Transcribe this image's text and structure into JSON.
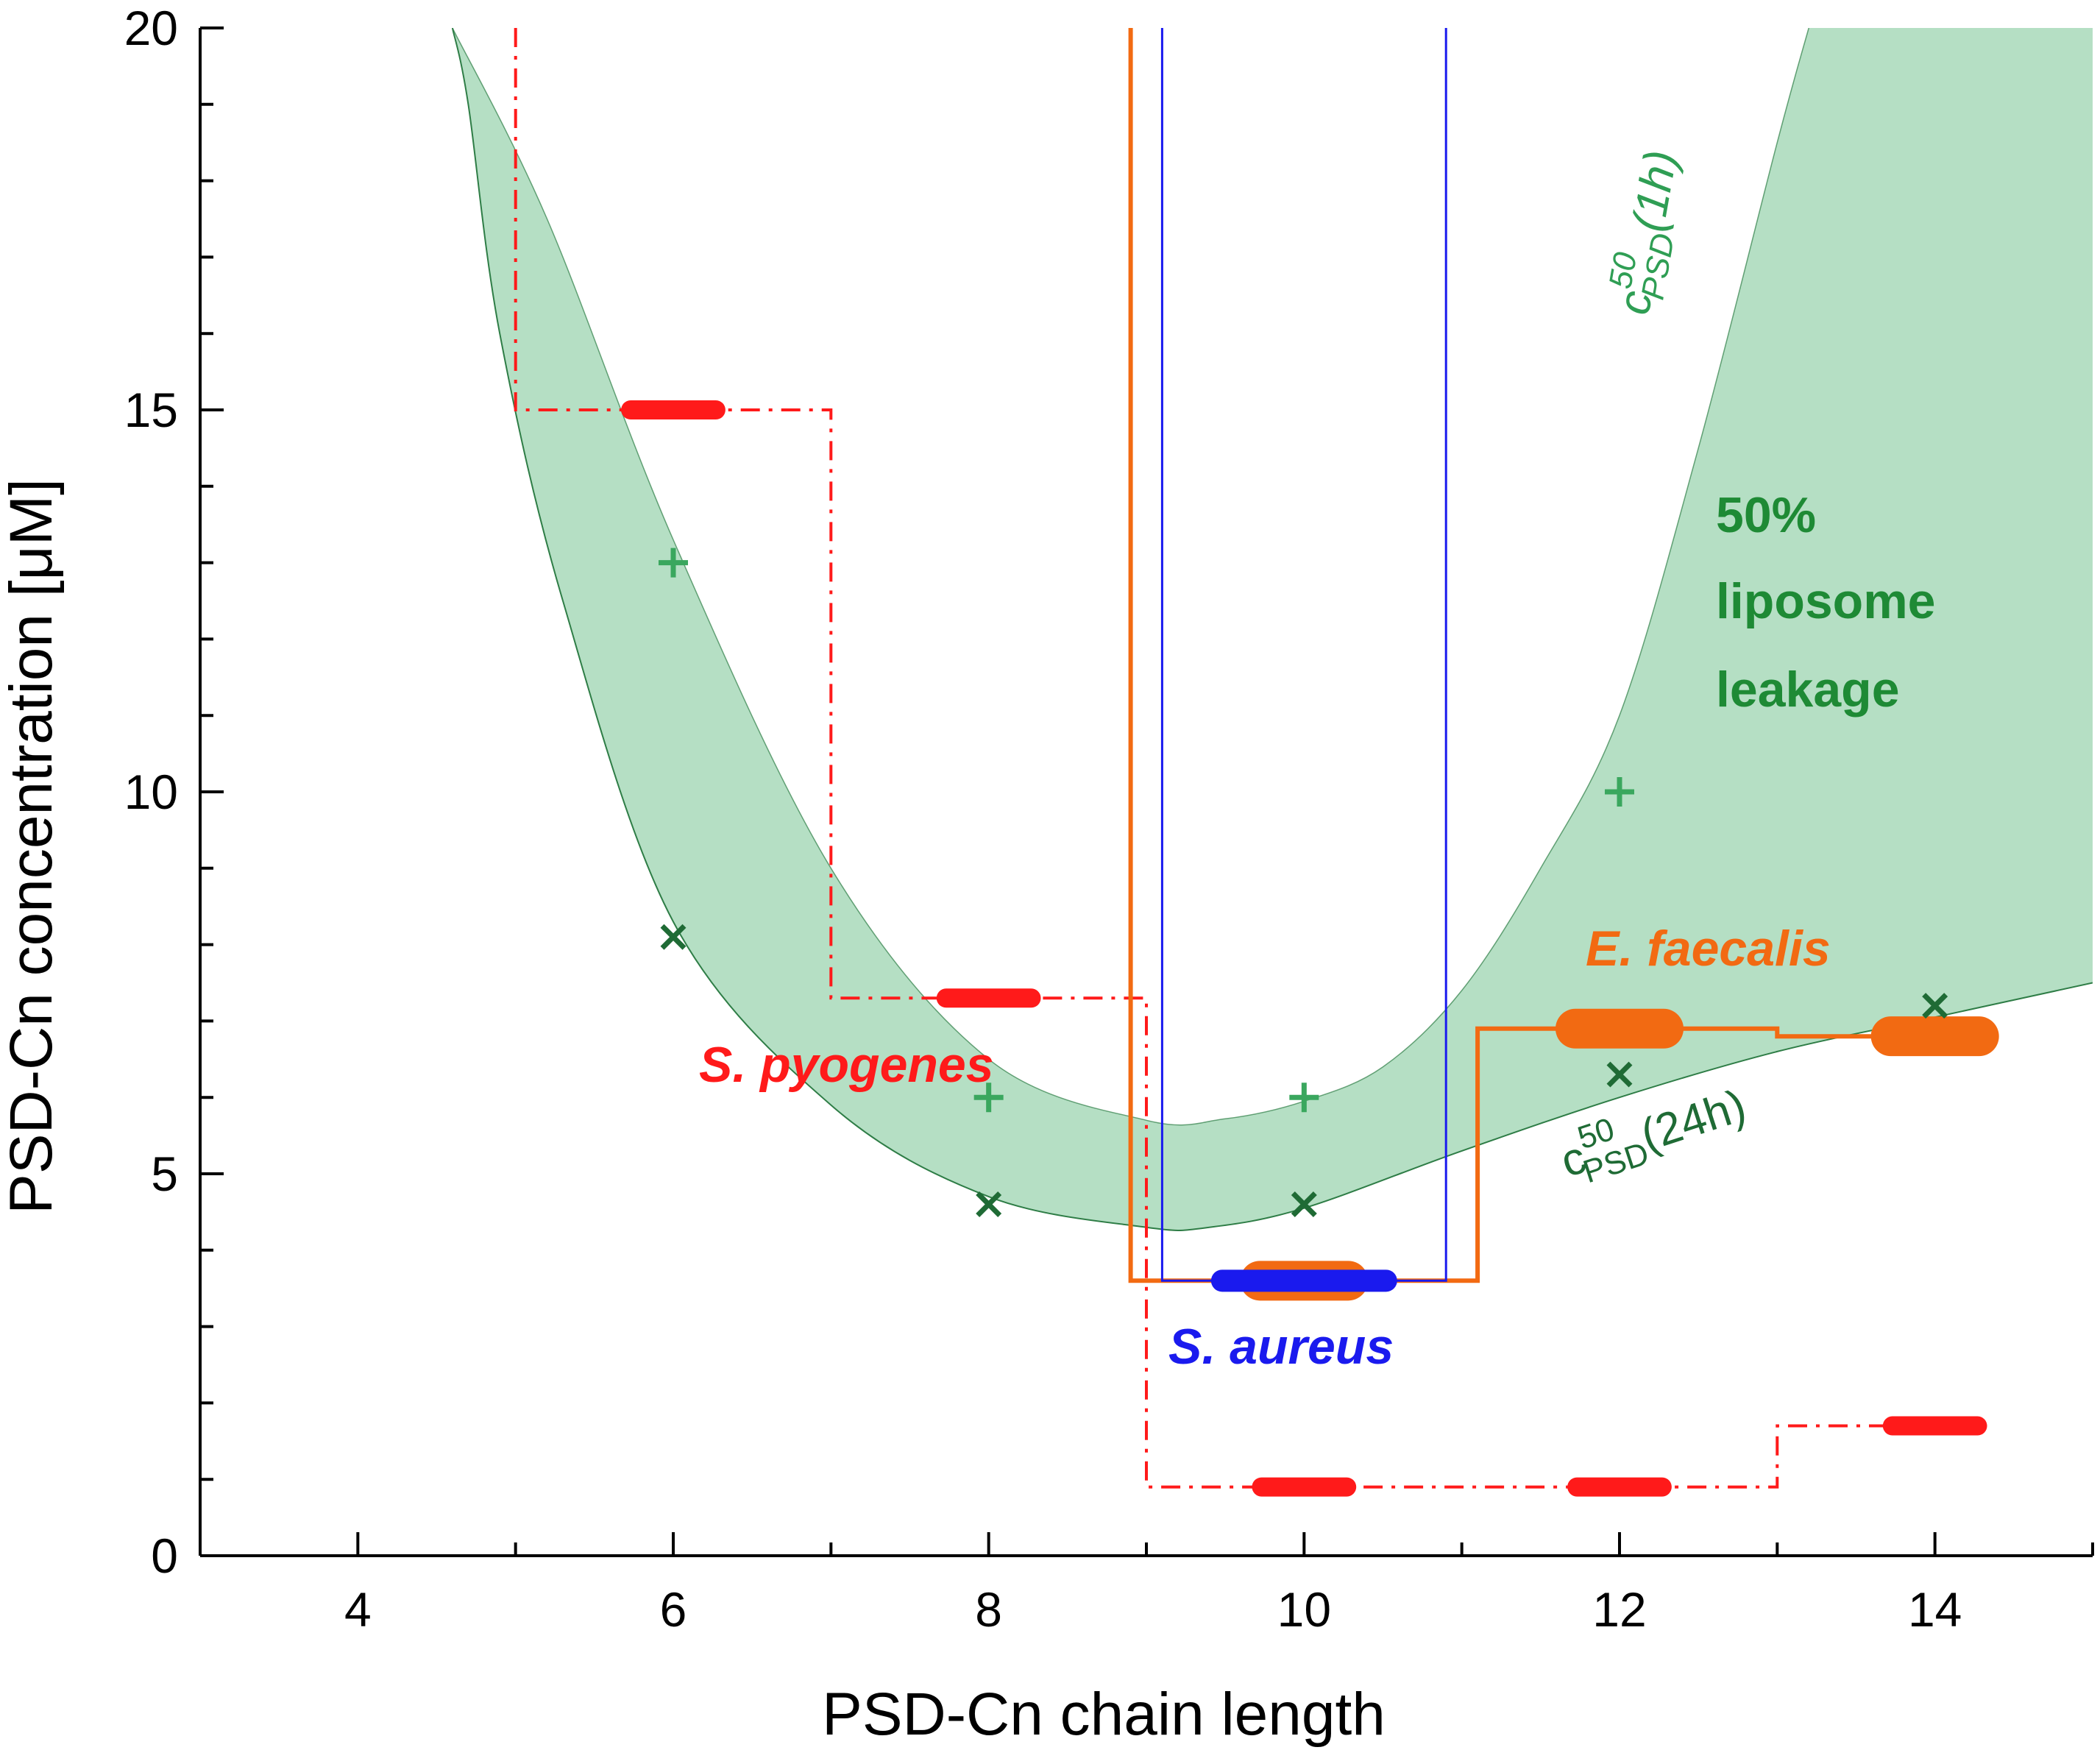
{
  "colors": {
    "band": "#b5dfc4",
    "band_edge": "#2e7d46",
    "pyogenes": "#ff1a1a",
    "faecalis": "#f26a12",
    "aureus": "#1a1aee",
    "leak_plus": "#3aa75e",
    "leak_cross": "#1f6b35",
    "region_text": "#1e8a35",
    "axis": "#000000"
  },
  "chart_data": {
    "type": "line",
    "title": "",
    "xlabel": "PSD-Cn chain length",
    "ylabel": "PSD-Cn concentration [μM]",
    "xlim": [
      3,
      15
    ],
    "ylim": [
      0,
      20
    ],
    "x_ticks": [
      4,
      6,
      8,
      10,
      12,
      14
    ],
    "y_ticks": [
      0,
      5,
      10,
      15,
      20
    ],
    "band": {
      "name": "50% liposome leakage region",
      "upper": [
        [
          4.6,
          20
        ],
        [
          5.2,
          17.5
        ],
        [
          6,
          13.3
        ],
        [
          7,
          9.0
        ],
        [
          8,
          6.5
        ],
        [
          9,
          5.7
        ],
        [
          9.5,
          5.72
        ],
        [
          10,
          5.95
        ],
        [
          10.5,
          6.4
        ],
        [
          11,
          7.4
        ],
        [
          11.5,
          9.0
        ],
        [
          12,
          11.0
        ],
        [
          12.5,
          14.5
        ],
        [
          13,
          18.5
        ],
        [
          13.2,
          20
        ]
      ],
      "lower": [
        [
          15,
          7.5
        ],
        [
          14,
          7.05
        ],
        [
          13,
          6.6
        ],
        [
          12,
          6.0
        ],
        [
          11,
          5.3
        ],
        [
          10,
          4.55
        ],
        [
          9.4,
          4.3
        ],
        [
          9,
          4.3
        ],
        [
          8,
          4.7
        ],
        [
          7,
          5.9
        ],
        [
          6,
          8.3
        ],
        [
          5.3,
          12.5
        ],
        [
          4.9,
          16
        ],
        [
          4.7,
          19
        ],
        [
          4.6,
          20
        ]
      ]
    },
    "series": [
      {
        "name": "S. pyogenes",
        "style": "dash-dot step",
        "line": [
          [
            5,
            20
          ],
          [
            5,
            15
          ],
          [
            7,
            15
          ],
          [
            7,
            7.3
          ],
          [
            9,
            7.3
          ],
          [
            9,
            0.9
          ],
          [
            13,
            0.9
          ],
          [
            13,
            1.7
          ],
          [
            14,
            1.7
          ]
        ],
        "values": [
          {
            "x": 6,
            "y": 15
          },
          {
            "x": 8,
            "y": 7.3
          },
          {
            "x": 10,
            "y": 0.9
          },
          {
            "x": 12,
            "y": 0.9
          },
          {
            "x": 14,
            "y": 1.7
          }
        ],
        "bar_half_width": 0.27
      },
      {
        "name": "E. faecalis",
        "style": "solid step",
        "line": [
          [
            8.9,
            20
          ],
          [
            8.9,
            3.6
          ],
          [
            11.1,
            3.6
          ],
          [
            11.1,
            6.9
          ],
          [
            13,
            6.9
          ],
          [
            13,
            6.8
          ],
          [
            14.1,
            6.8
          ]
        ],
        "values": [
          {
            "x": 10,
            "y": 3.6
          },
          {
            "x": 12,
            "y": 6.9
          },
          {
            "x": 14,
            "y": 6.8
          }
        ],
        "bar_half_width": 0.28
      },
      {
        "name": "S. aureus",
        "style": "thin step",
        "line": [
          [
            9.1,
            20
          ],
          [
            9.1,
            3.6
          ],
          [
            10.9,
            3.6
          ],
          [
            10.9,
            20
          ]
        ],
        "values": [
          {
            "x": 10,
            "y": 3.6
          }
        ],
        "bar_half_width": 0.52
      }
    ],
    "leakage_points": [
      {
        "name": "c50 PSD (1h)",
        "marker": "plus",
        "points": [
          {
            "x": 6,
            "y": 13
          },
          {
            "x": 8,
            "y": 6
          },
          {
            "x": 10,
            "y": 6
          },
          {
            "x": 12,
            "y": 10
          }
        ]
      },
      {
        "name": "c50 PSD (24h)",
        "marker": "cross",
        "points": [
          {
            "x": 6,
            "y": 8.1
          },
          {
            "x": 8,
            "y": 4.6
          },
          {
            "x": 10,
            "y": 4.6
          },
          {
            "x": 12,
            "y": 6.3
          },
          {
            "x": 14,
            "y": 7.2
          }
        ]
      }
    ],
    "labels": {
      "pyogenes": "S. pyogenes",
      "faecalis": "E. faecalis",
      "aureus": "S. aureus",
      "region_line1": "50%",
      "region_line2": "liposome",
      "region_line3": "leakage",
      "ann_1h_base": "c",
      "ann_1h_sup": "50",
      "ann_1h_sub": "PSD",
      "ann_1h_tail": "(1h)",
      "ann_24h_base": "c",
      "ann_24h_sup": "50",
      "ann_24h_sub": "PSD",
      "ann_24h_tail": "(24h)"
    }
  }
}
